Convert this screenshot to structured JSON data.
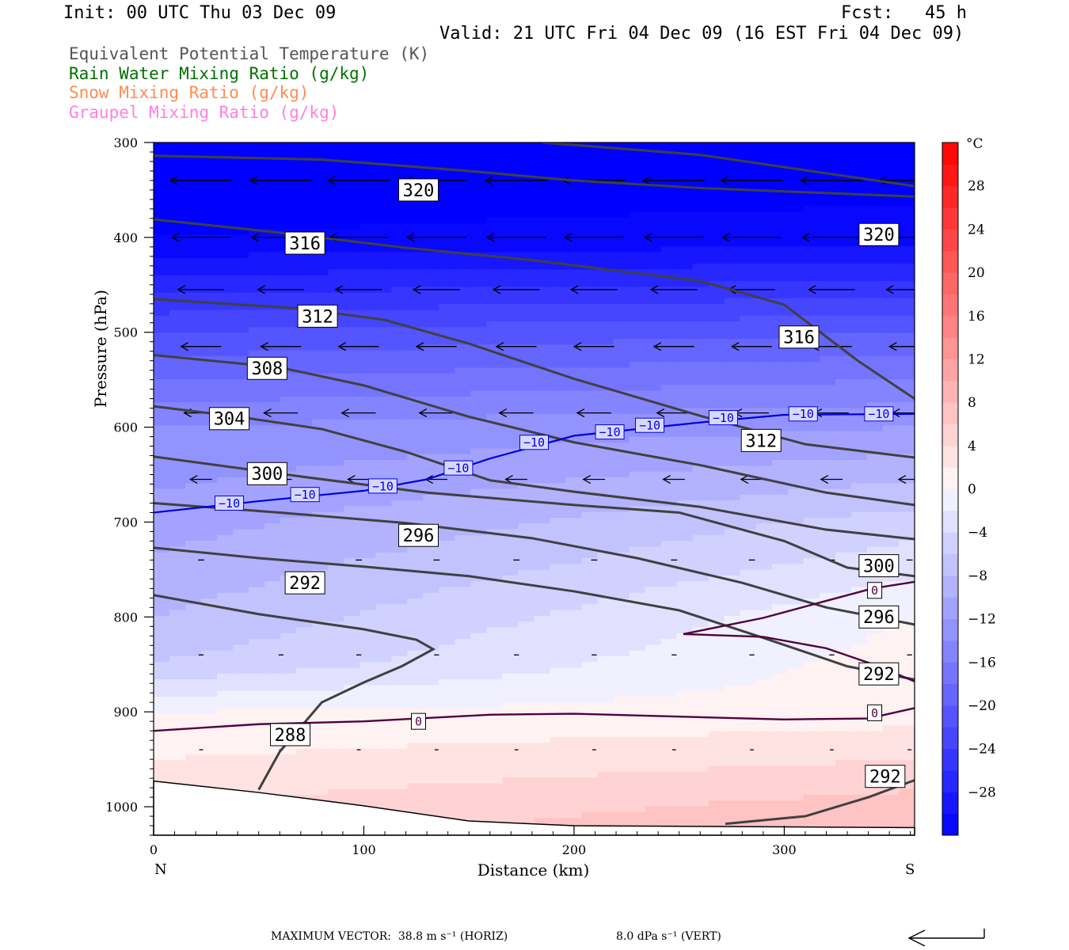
{
  "header": {
    "init": "Init: 00 UTC Thu 03 Dec 09",
    "fcst": "Fcst:   45 h",
    "valid": "Valid: 21 UTC Fri 04 Dec 09 (16 EST Fri 04 Dec 09)"
  },
  "legend": [
    {
      "label": "Equivalent Potential Temperature (K)",
      "color": "#555555"
    },
    {
      "label": "Rain Water Mixing Ratio (g/kg)",
      "color": "#007000"
    },
    {
      "label": "Snow Mixing Ratio (g/kg)",
      "color": "#ff8c50"
    },
    {
      "label": "Graupel Mixing Ratio (g/kg)",
      "color": "#ff80e0"
    }
  ],
  "footer": {
    "max_vector": "MAXIMUM VECTOR:  38.8 m s⁻¹ (HORIZ)",
    "vert": "8.0 dPa s⁻¹ (VERT)"
  },
  "chart_data": {
    "type": "heatmap",
    "title": "",
    "xlabel": "Distance (km)",
    "ylabel": "Pressure (hPa)",
    "xlim": [
      0,
      362
    ],
    "ylim": [
      1030,
      300
    ],
    "x_ticks": [
      0,
      100,
      200,
      300
    ],
    "y_ticks": [
      300,
      400,
      500,
      600,
      700,
      800,
      900,
      1000
    ],
    "x_end_labels": {
      "left": "N",
      "right": "S"
    },
    "fill_variable": "temperature",
    "colorbar": {
      "unit": "°C",
      "levels": [
        -32,
        -30,
        -28,
        -26,
        -24,
        -22,
        -20,
        -18,
        -16,
        -14,
        -12,
        -10,
        -8,
        -6,
        -4,
        -2,
        0,
        2,
        4,
        6,
        8,
        10,
        12,
        14,
        16,
        18,
        20,
        22,
        24,
        26,
        28,
        30,
        32
      ],
      "tick_labels": [
        "28",
        "24",
        "20",
        "16",
        "12",
        "8",
        "4",
        "0",
        "−4",
        "−8",
        "−12",
        "−16",
        "−20",
        "−24",
        "−28"
      ],
      "tick_values": [
        28,
        24,
        20,
        16,
        12,
        8,
        4,
        0,
        -4,
        -8,
        -12,
        -16,
        -20,
        -24,
        -28
      ]
    },
    "temperature_profile": {
      "p": [
        300,
        400,
        500,
        600,
        700,
        800,
        850,
        900,
        950,
        1000,
        1030
      ],
      "t_left": [
        -34,
        -32,
        -22,
        -14,
        -11,
        -8,
        -6,
        0,
        2,
        4,
        5
      ],
      "t_right": [
        -34,
        -31,
        -20,
        -12,
        -5,
        0,
        1,
        1,
        4,
        7,
        8
      ]
    },
    "theta_e_contours": [
      {
        "value": 320,
        "points": [
          [
            0,
            314
          ],
          [
            80,
            318
          ],
          [
            150,
            330
          ],
          [
            200,
            340
          ],
          [
            260,
            348
          ],
          [
            362,
            357
          ]
        ]
      },
      {
        "value": 320,
        "points": [
          [
            185,
            300
          ],
          [
            260,
            313
          ],
          [
            362,
            346
          ]
        ]
      },
      {
        "value": 316,
        "points": [
          [
            0,
            381
          ],
          [
            60,
            395
          ],
          [
            120,
            411
          ],
          [
            180,
            424
          ],
          [
            260,
            446
          ],
          [
            300,
            471
          ],
          [
            335,
            530
          ],
          [
            362,
            570
          ]
        ]
      },
      {
        "value": 312,
        "points": [
          [
            0,
            465
          ],
          [
            70,
            475
          ],
          [
            110,
            487
          ],
          [
            150,
            512
          ],
          [
            200,
            549
          ],
          [
            260,
            588
          ],
          [
            310,
            618
          ],
          [
            362,
            632
          ]
        ]
      },
      {
        "value": 308,
        "points": [
          [
            0,
            524
          ],
          [
            60,
            537
          ],
          [
            100,
            556
          ],
          [
            150,
            589
          ],
          [
            200,
            616
          ],
          [
            260,
            640
          ],
          [
            320,
            669
          ],
          [
            362,
            682
          ]
        ]
      },
      {
        "value": 304,
        "points": [
          [
            0,
            578
          ],
          [
            40,
            589
          ],
          [
            80,
            602
          ],
          [
            120,
            626
          ],
          [
            160,
            656
          ],
          [
            200,
            668
          ],
          [
            260,
            684
          ],
          [
            320,
            708
          ],
          [
            362,
            718
          ]
        ]
      },
      {
        "value": 300,
        "points": [
          [
            0,
            631
          ],
          [
            70,
            652
          ],
          [
            130,
            669
          ],
          [
            200,
            682
          ],
          [
            250,
            690
          ],
          [
            300,
            720
          ],
          [
            330,
            748
          ],
          [
            362,
            757
          ]
        ]
      },
      {
        "value": 296,
        "points": [
          [
            0,
            680
          ],
          [
            60,
            690
          ],
          [
            120,
            701
          ],
          [
            180,
            717
          ],
          [
            230,
            738
          ],
          [
            280,
            764
          ],
          [
            320,
            790
          ],
          [
            362,
            808
          ]
        ]
      },
      {
        "value": 292,
        "points": [
          [
            0,
            727
          ],
          [
            50,
            738
          ],
          [
            100,
            747
          ],
          [
            150,
            757
          ],
          [
            200,
            773
          ],
          [
            250,
            793
          ],
          [
            290,
            822
          ],
          [
            330,
            852
          ],
          [
            362,
            866
          ]
        ]
      },
      {
        "value": 288,
        "points": [
          [
            0,
            777
          ],
          [
            50,
            797
          ],
          [
            100,
            813
          ],
          [
            125,
            824
          ],
          [
            133,
            834
          ],
          [
            118,
            852
          ],
          [
            100,
            869
          ],
          [
            80,
            890
          ],
          [
            60,
            942
          ],
          [
            50,
            982
          ]
        ]
      },
      {
        "value": 292,
        "points": [
          [
            272,
            1018
          ],
          [
            310,
            1010
          ],
          [
            340,
            990
          ],
          [
            362,
            972
          ]
        ]
      }
    ],
    "isotherm_minus10": {
      "value": -10,
      "points": [
        [
          0,
          690
        ],
        [
          50,
          678
        ],
        [
          100,
          667
        ],
        [
          130,
          655
        ],
        [
          160,
          633
        ],
        [
          200,
          609
        ],
        [
          260,
          595
        ],
        [
          300,
          587
        ],
        [
          362,
          586
        ]
      ]
    },
    "isotherm_0": [
      {
        "value": 0,
        "points": [
          [
            0,
            920
          ],
          [
            50,
            913
          ],
          [
            100,
            910
          ],
          [
            160,
            903
          ],
          [
            200,
            902
          ],
          [
            250,
            905
          ],
          [
            300,
            908
          ],
          [
            340,
            907
          ],
          [
            362,
            896
          ]
        ]
      },
      {
        "value": 0,
        "points": [
          [
            252,
            818
          ],
          [
            290,
            801
          ],
          [
            320,
            783
          ],
          [
            342,
            770
          ],
          [
            362,
            763
          ]
        ]
      },
      {
        "value": 0,
        "points": [
          [
            252,
            818
          ],
          [
            290,
            821
          ],
          [
            320,
            833
          ],
          [
            345,
            852
          ],
          [
            362,
            868
          ]
        ]
      }
    ],
    "terrain": [
      [
        0,
        973
      ],
      [
        50,
        985
      ],
      [
        100,
        999
      ],
      [
        150,
        1015
      ],
      [
        200,
        1020
      ],
      [
        362,
        1022
      ]
    ],
    "wind_vectors": {
      "levels": [
        {
          "p": 340,
          "x": [
            0,
            38,
            75,
            112,
            150,
            187,
            225,
            262,
            300,
            337
          ],
          "u": -1.0
        },
        {
          "p": 400,
          "x": [
            0,
            38,
            75,
            112,
            150,
            187,
            225,
            262,
            300,
            337
          ],
          "u": -0.95
        },
        {
          "p": 455,
          "x": [
            0,
            38,
            75,
            112,
            150,
            187,
            225,
            262,
            300,
            337
          ],
          "u": -0.75
        },
        {
          "p": 515,
          "x": [
            0,
            38,
            75,
            112,
            150,
            187,
            225,
            262,
            300,
            337
          ],
          "u": -0.65
        },
        {
          "p": 585,
          "x": [
            0,
            38,
            75,
            112,
            150,
            187,
            225,
            262,
            300,
            337
          ],
          "u": -0.55
        },
        {
          "p": 655,
          "x": [
            0,
            38,
            75,
            112,
            150,
            187,
            225,
            262,
            300,
            337
          ],
          "u": -0.35
        },
        {
          "p": 740,
          "x": [
            0,
            38,
            75,
            112,
            150,
            187,
            225,
            262,
            300,
            337
          ],
          "u": -0.1
        },
        {
          "p": 840,
          "x": [
            0,
            38,
            75,
            112,
            150,
            187,
            225,
            262,
            300,
            337
          ],
          "u": -0.08
        },
        {
          "p": 940,
          "x": [
            0,
            38,
            75,
            112,
            150,
            187,
            225,
            262,
            300,
            337
          ],
          "u": -0.06
        }
      ]
    },
    "contour_labels": [
      {
        "text": "320",
        "x": 126,
        "p": 350
      },
      {
        "text": "320",
        "x": 345,
        "p": 397
      },
      {
        "text": "316",
        "x": 72,
        "p": 406
      },
      {
        "text": "316",
        "x": 307,
        "p": 505
      },
      {
        "text": "312",
        "x": 78,
        "p": 483
      },
      {
        "text": "312",
        "x": 289,
        "p": 614
      },
      {
        "text": "308",
        "x": 54,
        "p": 538
      },
      {
        "text": "304",
        "x": 36,
        "p": 591
      },
      {
        "text": "300",
        "x": 54,
        "p": 649
      },
      {
        "text": "300",
        "x": 345,
        "p": 746
      },
      {
        "text": "296",
        "x": 126,
        "p": 714
      },
      {
        "text": "296",
        "x": 345,
        "p": 800
      },
      {
        "text": "292",
        "x": 72,
        "p": 764
      },
      {
        "text": "292",
        "x": 345,
        "p": 860
      },
      {
        "text": "292",
        "x": 348,
        "p": 968
      },
      {
        "text": "288",
        "x": 65,
        "p": 924
      },
      {
        "text": "−10",
        "x": 36,
        "p": 680
      },
      {
        "text": "−10",
        "x": 72,
        "p": 671
      },
      {
        "text": "−10",
        "x": 109,
        "p": 662
      },
      {
        "text": "−10",
        "x": 145,
        "p": 643
      },
      {
        "text": "−10",
        "x": 181,
        "p": 616
      },
      {
        "text": "−10",
        "x": 217,
        "p": 605
      },
      {
        "text": "−10",
        "x": 236,
        "p": 598
      },
      {
        "text": "−10",
        "x": 271,
        "p": 590
      },
      {
        "text": "−10",
        "x": 309,
        "p": 586
      },
      {
        "text": "−10",
        "x": 345,
        "p": 586
      },
      {
        "text": "0",
        "x": 126,
        "p": 910
      },
      {
        "text": "0",
        "x": 343,
        "p": 901
      },
      {
        "text": "0",
        "x": 343,
        "p": 772
      }
    ]
  }
}
